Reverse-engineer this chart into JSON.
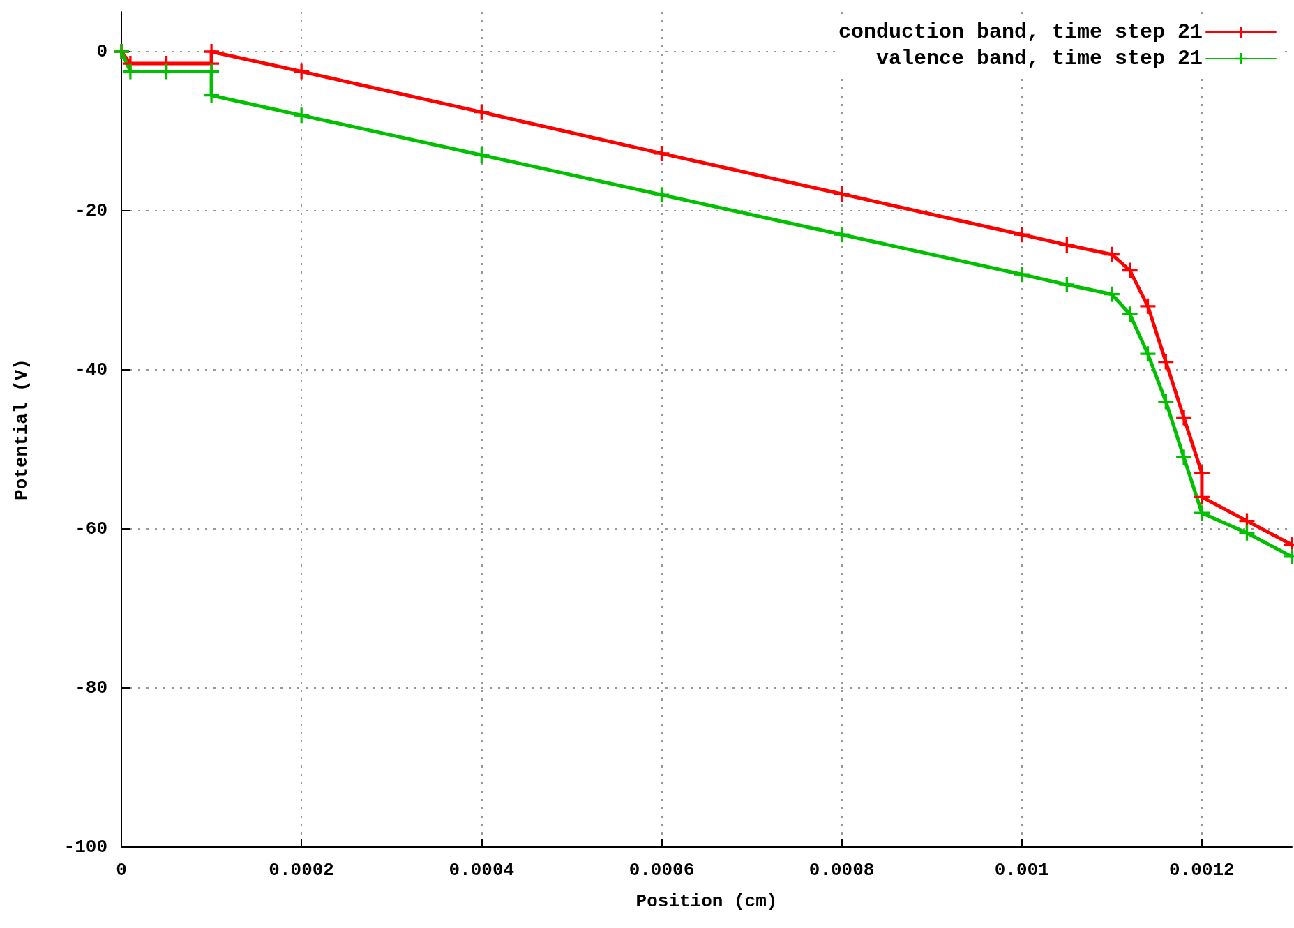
{
  "chart_data": {
    "type": "line",
    "xlabel": "Position (cm)",
    "ylabel": "Potential (V)",
    "xlim": [
      0,
      0.0013
    ],
    "xticks": [
      0,
      0.0002,
      0.0004,
      0.0006,
      0.0008,
      0.001,
      0.0012
    ],
    "ylim": [
      -100,
      5
    ],
    "yticks": [
      -100,
      -80,
      -60,
      -40,
      -20,
      0
    ],
    "grid": true,
    "legend": "top right",
    "marker": "cross",
    "line_style": "solid",
    "series": [
      {
        "name": "conduction band, time step 21",
        "color": "#ff0000",
        "x": [
          0,
          1e-05,
          5e-05,
          0.0001,
          0.0001,
          0.0002,
          0.0004,
          0.0006,
          0.0008,
          0.001,
          0.00105,
          0.0011,
          0.00112,
          0.00114,
          0.00116,
          0.00118,
          0.0012,
          0.0012,
          0.00125,
          0.0013
        ],
        "values": [
          0,
          -1.5,
          -1.5,
          -1.5,
          0,
          -2.5,
          -7.6,
          -12.8,
          -17.9,
          -23,
          -24.3,
          -25.5,
          -27.5,
          -32,
          -39,
          -46,
          -53,
          -56,
          -59,
          -62
        ]
      },
      {
        "name": "valence band, time step 21",
        "color": "#00c000",
        "x": [
          0,
          1e-05,
          5e-05,
          0.0001,
          0.0001,
          0.0002,
          0.0004,
          0.0006,
          0.0008,
          0.001,
          0.00105,
          0.0011,
          0.00112,
          0.00114,
          0.00116,
          0.00118,
          0.0012,
          0.00125,
          0.0013
        ],
        "values": [
          0,
          -2.5,
          -2.5,
          -2.5,
          -5.5,
          -8,
          -13,
          -18,
          -23,
          -28,
          -29.3,
          -30.5,
          -33,
          -38,
          -44,
          -51,
          -58,
          -60.5,
          -63.5
        ]
      }
    ]
  }
}
